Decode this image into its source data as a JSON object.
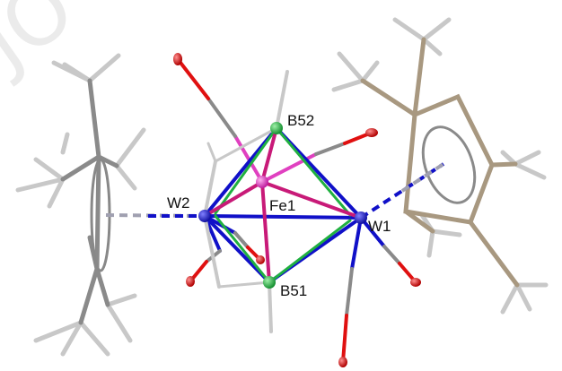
{
  "figure": {
    "atom_labels": {
      "W1": "W1",
      "W2": "W2",
      "Fe1": "Fe1",
      "B51": "B51",
      "B52": "B52"
    },
    "watermark_text": "JO",
    "colors": {
      "tungsten": "#1010c8",
      "iron": "#e040c0",
      "boron": "#20b040",
      "oxygen": "#e01010",
      "carbon": "#8a8a8a",
      "hydrogen": "#c8c8c8",
      "ring_carbon": "#a89880",
      "w_fe_bond": "#c81a78",
      "w_b_bond": "#20c040"
    }
  }
}
